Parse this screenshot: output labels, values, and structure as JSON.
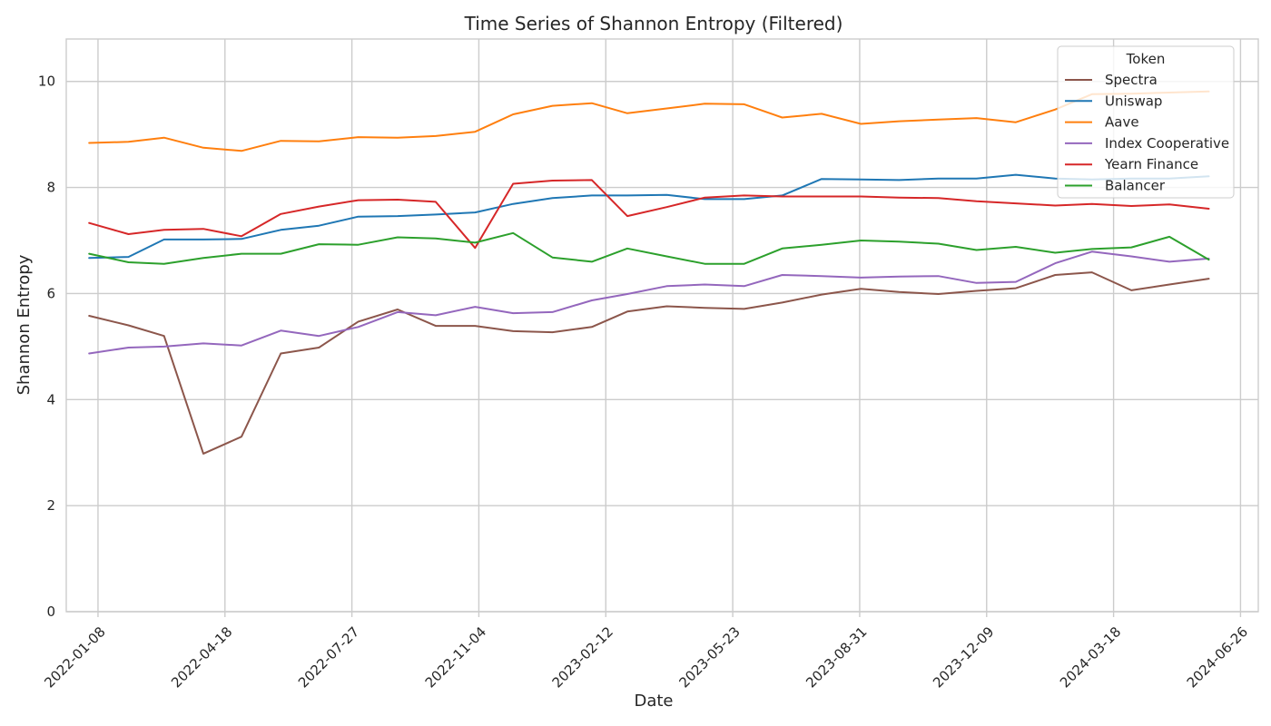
{
  "chart_data": {
    "type": "line",
    "title": "Time Series of Shannon Entropy (Filtered)",
    "xlabel": "Date",
    "ylabel": "Shannon Entropy",
    "x_type": "date",
    "x_range": [
      "2021-12-14",
      "2024-07-10"
    ],
    "ylim": [
      0,
      10.8
    ],
    "x_ticks": [
      "2022-01-08",
      "2022-04-18",
      "2022-07-27",
      "2022-11-04",
      "2023-02-12",
      "2023-05-23",
      "2023-08-31",
      "2023-12-09",
      "2024-03-18",
      "2024-06-26"
    ],
    "y_ticks": [
      0,
      2,
      4,
      6,
      8,
      10
    ],
    "grid": true,
    "legend": {
      "title": "Token",
      "placement": "top-right"
    },
    "x": [
      "2022-01-01",
      "2022-02-01",
      "2022-03-01",
      "2022-04-01",
      "2022-05-01",
      "2022-06-01",
      "2022-07-01",
      "2022-08-01",
      "2022-09-01",
      "2022-10-01",
      "2022-11-01",
      "2022-12-01",
      "2023-01-01",
      "2023-02-01",
      "2023-03-01",
      "2023-04-01",
      "2023-05-01",
      "2023-06-01",
      "2023-07-01",
      "2023-08-01",
      "2023-09-01",
      "2023-10-01",
      "2023-11-01",
      "2023-12-01",
      "2024-01-01",
      "2024-02-01",
      "2024-03-01",
      "2024-04-01",
      "2024-05-01",
      "2024-06-01"
    ],
    "series": [
      {
        "name": "Spectra",
        "color": "#8c564b",
        "values": [
          5.58,
          5.4,
          5.2,
          2.98,
          3.3,
          4.87,
          4.98,
          5.47,
          5.7,
          5.39,
          5.39,
          5.29,
          5.27,
          5.37,
          5.66,
          5.76,
          5.73,
          5.71,
          5.83,
          5.98,
          6.09,
          6.03,
          5.99,
          6.05,
          6.1,
          6.35,
          6.4,
          6.06,
          6.17,
          6.28
        ]
      },
      {
        "name": "Uniswap",
        "color": "#1f77b4",
        "values": [
          6.67,
          6.69,
          7.02,
          7.02,
          7.03,
          7.2,
          7.28,
          7.45,
          7.46,
          7.49,
          7.53,
          7.69,
          7.8,
          7.85,
          7.85,
          7.86,
          7.78,
          7.78,
          7.85,
          8.16,
          8.15,
          8.14,
          8.17,
          8.17,
          8.24,
          8.17,
          8.15,
          8.17,
          8.17,
          8.21
        ]
      },
      {
        "name": "Aave",
        "color": "#ff7f0e",
        "values": [
          8.84,
          8.86,
          8.94,
          8.75,
          8.69,
          8.88,
          8.87,
          8.95,
          8.94,
          8.97,
          9.05,
          9.38,
          9.54,
          9.59,
          9.4,
          9.49,
          9.58,
          9.57,
          9.32,
          9.39,
          9.2,
          9.25,
          9.28,
          9.31,
          9.23,
          9.47,
          9.76,
          9.77,
          9.79,
          9.81
        ]
      },
      {
        "name": "Index Cooperative",
        "color": "#9467bd",
        "values": [
          4.87,
          4.98,
          5.0,
          5.06,
          5.02,
          5.3,
          5.2,
          5.37,
          5.65,
          5.59,
          5.75,
          5.63,
          5.65,
          5.87,
          5.99,
          6.14,
          6.17,
          6.14,
          6.35,
          6.33,
          6.3,
          6.32,
          6.33,
          6.2,
          6.22,
          6.57,
          6.79,
          6.7,
          6.6,
          6.66
        ]
      },
      {
        "name": "Yearn Finance",
        "color": "#d62728",
        "values": [
          7.33,
          7.12,
          7.2,
          7.22,
          7.08,
          7.5,
          7.64,
          7.76,
          7.77,
          7.73,
          6.86,
          8.07,
          8.13,
          8.14,
          7.46,
          7.63,
          7.81,
          7.85,
          7.83,
          7.83,
          7.83,
          7.81,
          7.8,
          7.74,
          7.7,
          7.66,
          7.69,
          7.65,
          7.68,
          7.6
        ]
      },
      {
        "name": "Balancer",
        "color": "#2ca02c",
        "values": [
          6.75,
          6.59,
          6.56,
          6.67,
          6.75,
          6.75,
          6.93,
          6.92,
          7.06,
          7.04,
          6.96,
          7.14,
          6.68,
          6.6,
          6.85,
          6.7,
          6.56,
          6.56,
          6.85,
          6.92,
          7.0,
          6.98,
          6.94,
          6.82,
          6.88,
          6.77,
          6.84,
          6.87,
          7.07,
          6.64
        ]
      }
    ]
  }
}
